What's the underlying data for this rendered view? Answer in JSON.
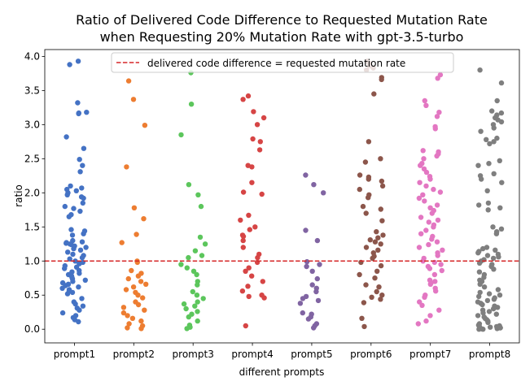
{
  "chart_data": {
    "type": "scatter",
    "title_line1": "Ratio of Delivered Code Difference to Requested Mutation Rate",
    "title_line2": "when Requesting 20% Mutation Rate with gpt-3.5-turbo",
    "xlabel": "different prompts",
    "ylabel": "ratio",
    "ylim": [
      -0.2,
      4.1
    ],
    "yticks": [
      "0.0",
      "0.5",
      "1.0",
      "1.5",
      "2.0",
      "2.5",
      "3.0",
      "3.5",
      "4.0"
    ],
    "ytick_values": [
      0,
      0.5,
      1.0,
      1.5,
      2.0,
      2.5,
      3.0,
      3.5,
      4.0
    ],
    "categories": [
      "prompt1",
      "prompt2",
      "prompt3",
      "prompt4",
      "prompt5",
      "prompt6",
      "prompt7",
      "prompt8"
    ],
    "reference_line": {
      "y": 1.0,
      "color": "#d62728",
      "style": "dashed"
    },
    "legend": {
      "label": "delivered code difference = requested mutation rate",
      "placement": "top-center"
    },
    "grid": false,
    "series": [
      {
        "category": "prompt1",
        "color": "#4472c4",
        "values": [
          3.93,
          3.88,
          3.32,
          3.18,
          3.17,
          3.16,
          2.82,
          2.65,
          2.49,
          2.4,
          2.31,
          2.1,
          2.07,
          2.05,
          2.03,
          2.0,
          1.97,
          1.94,
          1.92,
          1.85,
          1.8,
          1.77,
          1.73,
          1.68,
          1.65,
          1.46,
          1.44,
          1.4,
          1.38,
          1.3,
          1.28,
          1.27,
          1.26,
          1.25,
          1.24,
          1.22,
          1.2,
          1.18,
          1.16,
          1.13,
          1.1,
          1.08,
          1.05,
          1.03,
          1.0,
          0.98,
          0.96,
          0.93,
          0.91,
          0.89,
          0.86,
          0.84,
          0.82,
          0.8,
          0.78,
          0.76,
          0.74,
          0.72,
          0.7,
          0.68,
          0.66,
          0.64,
          0.62,
          0.6,
          0.58,
          0.56,
          0.54,
          0.52,
          0.45,
          0.4,
          0.37,
          0.34,
          0.31,
          0.28,
          0.24,
          0.2,
          0.17,
          0.14,
          0.11
        ]
      },
      {
        "category": "prompt2",
        "color": "#ed7d31",
        "values": [
          3.64,
          3.37,
          2.99,
          2.38,
          1.78,
          1.62,
          1.39,
          1.27,
          1.0,
          0.98,
          0.86,
          0.82,
          0.78,
          0.74,
          0.7,
          0.66,
          0.62,
          0.58,
          0.54,
          0.5,
          0.46,
          0.4,
          0.36,
          0.32,
          0.28,
          0.24,
          0.2,
          0.16,
          0.12,
          0.08,
          0.05,
          0.02,
          0.01
        ]
      },
      {
        "category": "prompt3",
        "color": "#5cc65c",
        "values": [
          3.76,
          3.3,
          2.85,
          2.12,
          1.97,
          1.8,
          1.35,
          1.25,
          1.15,
          1.08,
          1.05,
          0.95,
          0.9,
          0.85,
          0.8,
          0.7,
          0.65,
          0.55,
          0.5,
          0.45,
          0.4,
          0.37,
          0.34,
          0.3,
          0.26,
          0.22,
          0.18,
          0.12,
          0.06,
          0.03,
          0.01
        ]
      },
      {
        "category": "prompt4",
        "color": "#d64545",
        "values": [
          3.42,
          3.37,
          3.19,
          3.1,
          3.0,
          2.79,
          2.75,
          2.63,
          2.4,
          2.38,
          2.15,
          2.01,
          1.98,
          1.67,
          1.6,
          1.5,
          1.46,
          1.38,
          1.36,
          1.3,
          1.2,
          1.1,
          1.05,
          0.98,
          0.9,
          0.85,
          0.78,
          0.7,
          0.63,
          0.56,
          0.5,
          0.48,
          0.46,
          0.05
        ]
      },
      {
        "category": "prompt5",
        "color": "#8064a2",
        "values": [
          2.26,
          2.12,
          2.0,
          1.45,
          1.3,
          0.99,
          0.95,
          0.92,
          0.85,
          0.74,
          0.65,
          0.6,
          0.55,
          0.48,
          0.45,
          0.42,
          0.38,
          0.24,
          0.22,
          0.18,
          0.15,
          0.08,
          0.05,
          0.02
        ]
      },
      {
        "category": "prompt6",
        "color": "#8c564b",
        "values": [
          3.93,
          3.9,
          3.86,
          3.83,
          3.8,
          3.69,
          3.66,
          3.45,
          2.75,
          2.5,
          2.45,
          2.26,
          2.23,
          2.2,
          2.17,
          2.1,
          2.05,
          1.97,
          1.93,
          1.8,
          1.76,
          1.7,
          1.59,
          1.43,
          1.38,
          1.34,
          1.31,
          1.28,
          1.25,
          1.2,
          1.16,
          1.12,
          1.07,
          1.04,
          0.98,
          0.93,
          0.85,
          0.8,
          0.75,
          0.65,
          0.62,
          0.55,
          0.5,
          0.47,
          0.44,
          0.39,
          0.16,
          0.04
        ]
      },
      {
        "category": "prompt7",
        "color": "#e377c2",
        "values": [
          3.73,
          3.68,
          3.35,
          3.28,
          3.18,
          3.12,
          2.97,
          2.94,
          2.62,
          2.6,
          2.57,
          2.54,
          2.5,
          2.43,
          2.4,
          2.35,
          2.3,
          2.24,
          2.2,
          2.15,
          2.1,
          2.05,
          2.01,
          1.97,
          1.92,
          1.88,
          1.82,
          1.78,
          1.74,
          1.7,
          1.64,
          1.6,
          1.57,
          1.53,
          1.5,
          1.45,
          1.4,
          1.36,
          1.32,
          1.28,
          1.24,
          1.2,
          1.16,
          1.12,
          1.08,
          1.04,
          1.0,
          0.98,
          0.95,
          0.92,
          0.89,
          0.86,
          0.8,
          0.72,
          0.7,
          0.68,
          0.66,
          0.6,
          0.56,
          0.5,
          0.47,
          0.4,
          0.35,
          0.28,
          0.2,
          0.12,
          0.08
        ]
      },
      {
        "category": "prompt8",
        "color": "#7f7f7f",
        "values": [
          3.8,
          3.61,
          3.35,
          3.2,
          3.17,
          3.14,
          3.1,
          3.07,
          3.04,
          3.0,
          2.95,
          2.9,
          2.8,
          2.78,
          2.75,
          2.72,
          2.47,
          2.43,
          2.4,
          2.28,
          2.25,
          2.2,
          2.15,
          2.03,
          1.85,
          1.82,
          1.78,
          1.75,
          1.5,
          1.47,
          1.43,
          1.4,
          1.2,
          1.18,
          1.16,
          1.14,
          1.12,
          1.1,
          1.08,
          1.06,
          1.04,
          1.02,
          1.0,
          0.97,
          0.95,
          0.92,
          0.88,
          0.84,
          0.8,
          0.76,
          0.72,
          0.7,
          0.66,
          0.62,
          0.58,
          0.54,
          0.52,
          0.5,
          0.48,
          0.46,
          0.44,
          0.42,
          0.4,
          0.38,
          0.36,
          0.34,
          0.32,
          0.3,
          0.28,
          0.26,
          0.24,
          0.22,
          0.2,
          0.18,
          0.16,
          0.14,
          0.12,
          0.1,
          0.08,
          0.06,
          0.05,
          0.04,
          0.03,
          0.02,
          0.01,
          0.005,
          0.0,
          0.0,
          0.02,
          0.04
        ]
      }
    ]
  }
}
